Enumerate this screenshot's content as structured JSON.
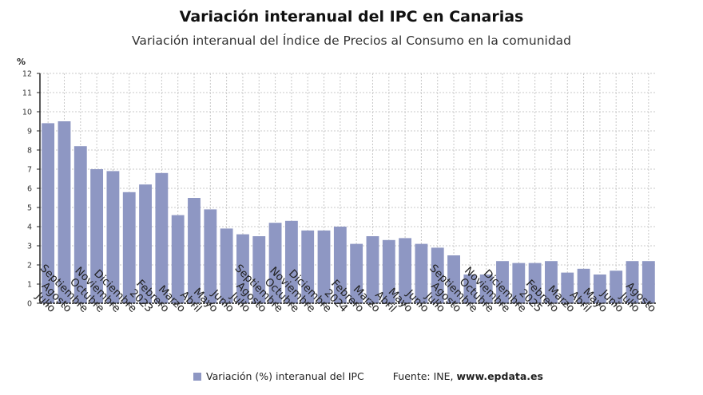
{
  "title": "Variación interanual del IPC en Canarias",
  "subtitle": "Variación interanual del Índice de Precios al Consumo en la comunidad",
  "legend_label": "Variación (%) interanual del IPC",
  "source_prefix": "Fuente: INE, ",
  "source_site": "www.epdata.es",
  "colors": {
    "bar": "#8e97c3",
    "grid": "#c8c8c8",
    "axis": "#222222"
  },
  "chart_data": {
    "type": "bar",
    "title": "Variación interanual del IPC en Canarias",
    "ylabel": "%",
    "ylim": [
      0,
      12
    ],
    "yticks": [
      0,
      1,
      2,
      3,
      4,
      5,
      6,
      7,
      8,
      9,
      10,
      11,
      12
    ],
    "grid": true,
    "legend": "bottom",
    "categories": [
      "Julio",
      "Agosto",
      "Septiembre",
      "Octubre",
      "Noviembre",
      "Diciembre",
      "2023",
      "Febrero",
      "Marzo",
      "Abril",
      "Mayo",
      "Junio",
      "Julio",
      "Agosto",
      "Septiembre",
      "Octubre",
      "Noviembre",
      "Diciembre",
      "2024",
      "Febrero",
      "Marzo",
      "Abril",
      "Mayo",
      "Junio",
      "Julio",
      "Agosto",
      "Septiembre",
      "Octubre",
      "Noviembre",
      "Diciembre",
      "2025",
      "Febrero",
      "Marzo",
      "Abril",
      "Mayo",
      "Junio",
      "Julio",
      "Agosto"
    ],
    "series": [
      {
        "name": "Variación (%) interanual del IPC",
        "values": [
          9.4,
          9.5,
          8.2,
          7.0,
          6.9,
          5.8,
          6.2,
          6.8,
          4.6,
          5.5,
          4.9,
          3.9,
          3.6,
          3.5,
          4.2,
          4.3,
          3.8,
          3.8,
          4.0,
          3.1,
          3.5,
          3.3,
          3.4,
          3.1,
          2.9,
          2.5,
          1.5,
          1.5,
          2.2,
          2.1,
          2.1,
          2.2,
          1.6,
          1.8,
          1.5,
          1.7,
          2.2,
          2.2
        ]
      }
    ]
  }
}
